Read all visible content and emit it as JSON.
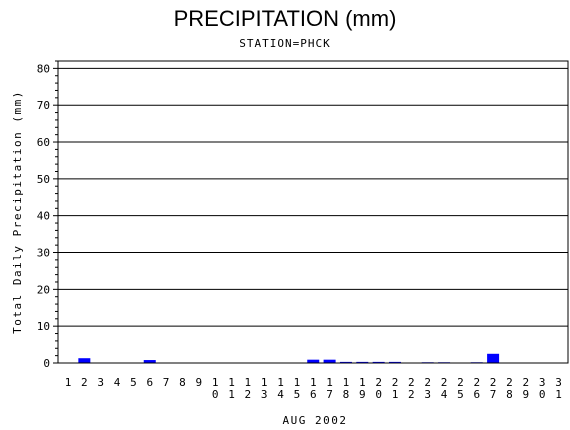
{
  "chart_data": {
    "type": "bar",
    "title": "PRECIPITATION (mm)",
    "subtitle": "STATION=PHCK",
    "ylabel": "Total Daily Precipitation (mm)",
    "xlabel": "AUG 2002",
    "ylim": [
      0,
      82
    ],
    "yticks": [
      0,
      10,
      20,
      30,
      40,
      50,
      60,
      70,
      80
    ],
    "grid": true,
    "categories": [
      "1",
      "2",
      "3",
      "4",
      "5",
      "6",
      "7",
      "8",
      "9",
      "10",
      "11",
      "12",
      "13",
      "14",
      "15",
      "16",
      "17",
      "18",
      "19",
      "20",
      "21",
      "22",
      "23",
      "24",
      "25",
      "26",
      "27",
      "28",
      "29",
      "30",
      "31"
    ],
    "values": [
      0,
      1.3,
      0,
      0,
      0,
      0.8,
      0,
      0,
      0,
      0,
      0,
      0,
      0,
      0,
      0,
      0.9,
      0.9,
      0.3,
      0.3,
      0.3,
      0.3,
      0,
      0.2,
      0.2,
      0,
      0.2,
      2.5,
      0,
      0,
      0,
      0
    ],
    "bar_color": "#0000ff"
  }
}
